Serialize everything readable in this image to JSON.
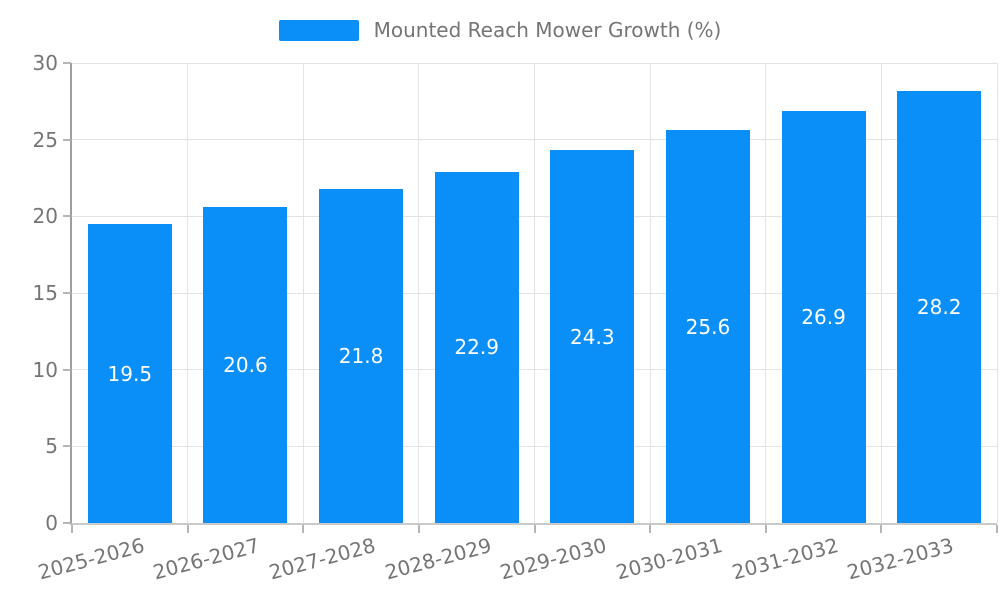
{
  "chart_data": {
    "type": "bar",
    "legend_label": "Mounted Reach Mower Growth (%)",
    "legend_position": "top-center",
    "categories": [
      "2025-2026",
      "2026-2027",
      "2027-2028",
      "2028-2029",
      "2029-2030",
      "2030-2031",
      "2031-2032",
      "2032-2033"
    ],
    "values": [
      19.5,
      20.6,
      21.8,
      22.9,
      24.3,
      25.6,
      26.9,
      28.2
    ],
    "title": "",
    "xlabel": "",
    "ylabel": "",
    "ylim": [
      0,
      30
    ],
    "yticks": [
      0,
      5,
      10,
      15,
      20,
      25,
      30
    ],
    "grid": true,
    "x_tick_rotation_deg": -15,
    "bar_labels_inside": true,
    "colors": {
      "bar": "#0a8ef8",
      "bar_label": "#ffffff",
      "axis_text": "#757575",
      "gridline": "#e3e3e3",
      "y_axis_line": "#9e9e9e",
      "x_axis_line": "#c9c9c9",
      "tick_mark": "#b5b5b5",
      "background": "#ffffff"
    }
  }
}
